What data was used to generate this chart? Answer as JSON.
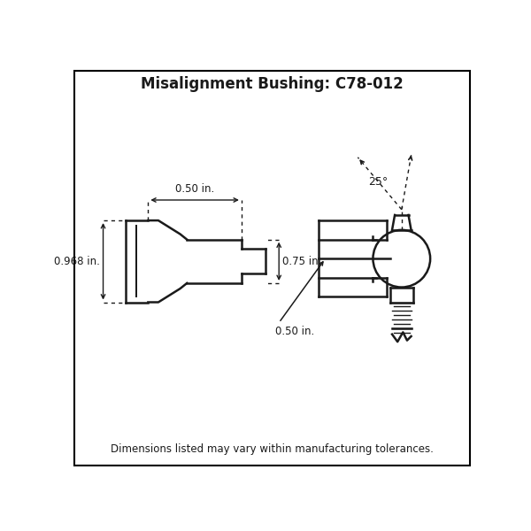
{
  "title": "Misalignment Bushing: C78-012",
  "title_fontsize": 12,
  "footnote": "Dimensions listed may vary within manufacturing tolerances.",
  "footnote_fontsize": 8.5,
  "bg_color": "#ffffff",
  "line_color": "#1a1a1a",
  "lw": 1.8,
  "dim_lw": 1.0,
  "fig_border_color": "#000000"
}
